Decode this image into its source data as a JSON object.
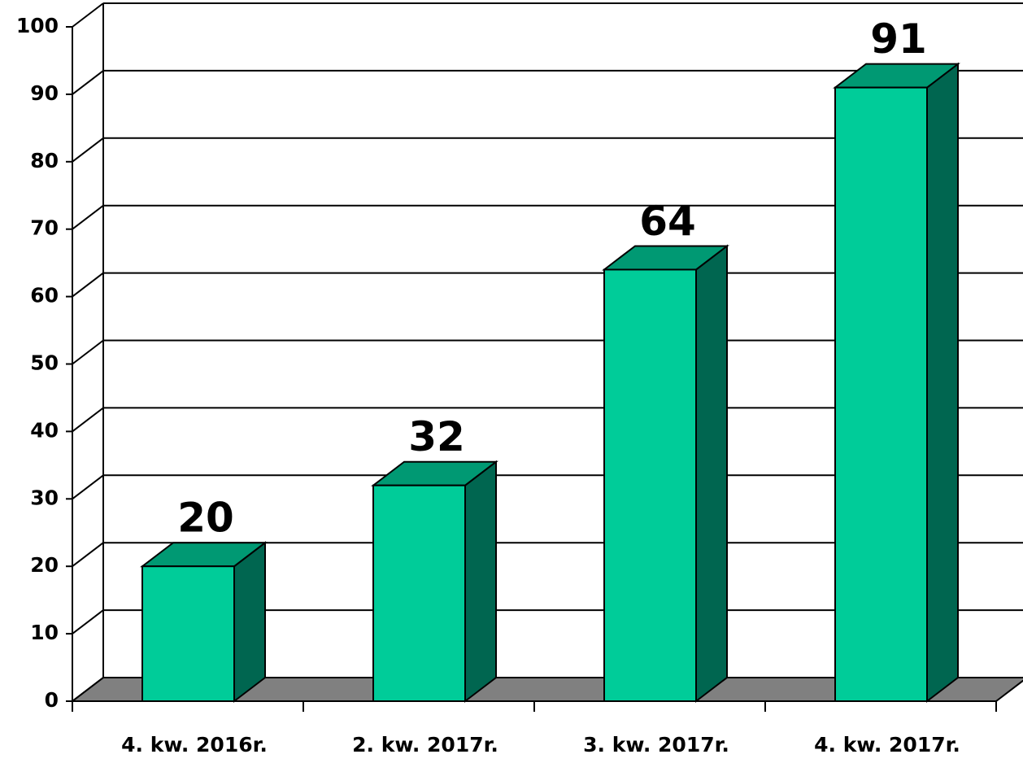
{
  "chart_data": {
    "type": "bar3d",
    "categories": [
      "4. kw. 2016r.",
      "2. kw. 2017r.",
      "3. kw. 2017r.",
      "4. kw. 2017r."
    ],
    "values": [
      20,
      32,
      64,
      91
    ],
    "colors": {
      "front": "#00cc99",
      "top": "#009973",
      "side": "#006650",
      "floor": "#808080"
    },
    "ylim": [
      0,
      100
    ],
    "yticks": [
      0,
      10,
      20,
      30,
      40,
      50,
      60,
      70,
      80,
      90,
      100
    ],
    "grid": true
  }
}
